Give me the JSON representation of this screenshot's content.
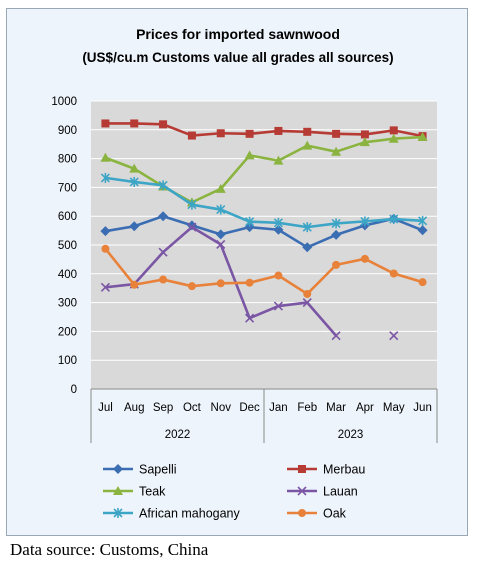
{
  "chart_data": {
    "type": "line",
    "title": "Prices for imported sawnwood",
    "subtitle": "(US$/cu.m Customs value all grades all sources)",
    "categories": [
      "Jul",
      "Aug",
      "Sep",
      "Oct",
      "Nov",
      "Dec",
      "Jan",
      "Feb",
      "Mar",
      "Apr",
      "May",
      "Jun"
    ],
    "year_groups": [
      {
        "label": "2022",
        "start": 0,
        "end": 5
      },
      {
        "label": "2023",
        "start": 6,
        "end": 11
      }
    ],
    "ylim": [
      0,
      1000
    ],
    "yticks": [
      "0",
      "100",
      "200",
      "300",
      "400",
      "500",
      "600",
      "700",
      "800",
      "900",
      "1000"
    ],
    "grid": true,
    "legend_position": "bottom",
    "series": [
      {
        "name": "Sapelli",
        "color": "#3b6db3",
        "marker": "diamond",
        "values": [
          548,
          565,
          600,
          568,
          537,
          562,
          553,
          492,
          535,
          568,
          591,
          551
        ]
      },
      {
        "name": "Merbau",
        "color": "#b63b35",
        "marker": "square",
        "values": [
          922,
          922,
          919,
          880,
          888,
          886,
          896,
          893,
          886,
          884,
          898,
          878
        ]
      },
      {
        "name": "Teak",
        "color": "#8ab43f",
        "marker": "triangle",
        "values": [
          803,
          765,
          703,
          648,
          695,
          811,
          793,
          845,
          824,
          857,
          869,
          875
        ]
      },
      {
        "name": "Lauan",
        "color": "#7a56a4",
        "marker": "x",
        "values": [
          353,
          364,
          475,
          562,
          502,
          246,
          288,
          300,
          185,
          null,
          185,
          null
        ]
      },
      {
        "name": "African mahogany",
        "color": "#3da5c6",
        "marker": "star",
        "values": [
          733,
          719,
          707,
          640,
          623,
          581,
          577,
          562,
          575,
          582,
          590,
          584
        ]
      },
      {
        "name": "Oak",
        "color": "#e8823a",
        "marker": "circle",
        "values": [
          487,
          362,
          380,
          357,
          367,
          369,
          394,
          330,
          431,
          452,
          401,
          371
        ]
      }
    ]
  },
  "footer": {
    "source": "Data source: Customs, China"
  }
}
